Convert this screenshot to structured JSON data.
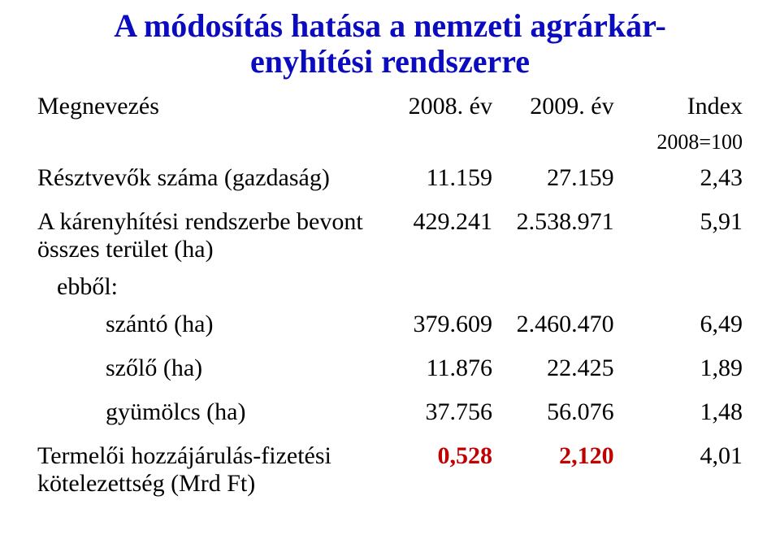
{
  "title_line1": "A módosítás hatása a nemzeti agrárkár-",
  "title_line2": "enyhítési rendszerre",
  "header": {
    "label": "Megnevezés",
    "y2008": "2008. év",
    "y2009": "2009. év",
    "index": "Index",
    "index_sub": "2008=100"
  },
  "rows": {
    "participants": {
      "label": "Résztvevők száma (gazdaság)",
      "y2008": "11.159",
      "y2009": "27.159",
      "index": "2,43"
    },
    "area_total": {
      "label_l1": "A kárenyhítési rendszerbe bevont",
      "label_l2": "összes terület (ha)",
      "y2008": "429.241",
      "y2009": "2.538.971",
      "index": "5,91"
    },
    "ebbol": {
      "label": "ebből:"
    },
    "szanto": {
      "label": "szántó (ha)",
      "y2008": "379.609",
      "y2009": "2.460.470",
      "index": "6,49"
    },
    "szolo": {
      "label": "szőlő (ha)",
      "y2008": "11.876",
      "y2009": "22.425",
      "index": "1,89"
    },
    "gyumolcs": {
      "label": "gyümölcs (ha)",
      "y2008": "37.756",
      "y2009": "56.076",
      "index": "1,48"
    },
    "contribution": {
      "label_l1": "Termelői hozzájárulás-fizetési",
      "label_l2": "kötelezettség (Mrd Ft)",
      "y2008": "0,528",
      "y2009": "2,120",
      "index": "4,01"
    }
  },
  "colors": {
    "title": "#0b0bbf",
    "text": "#000000",
    "red": "#c00000",
    "background": "#ffffff"
  },
  "fonts": {
    "title_size_pt": 30,
    "body_size_pt": 22,
    "family": "Times New Roman"
  }
}
